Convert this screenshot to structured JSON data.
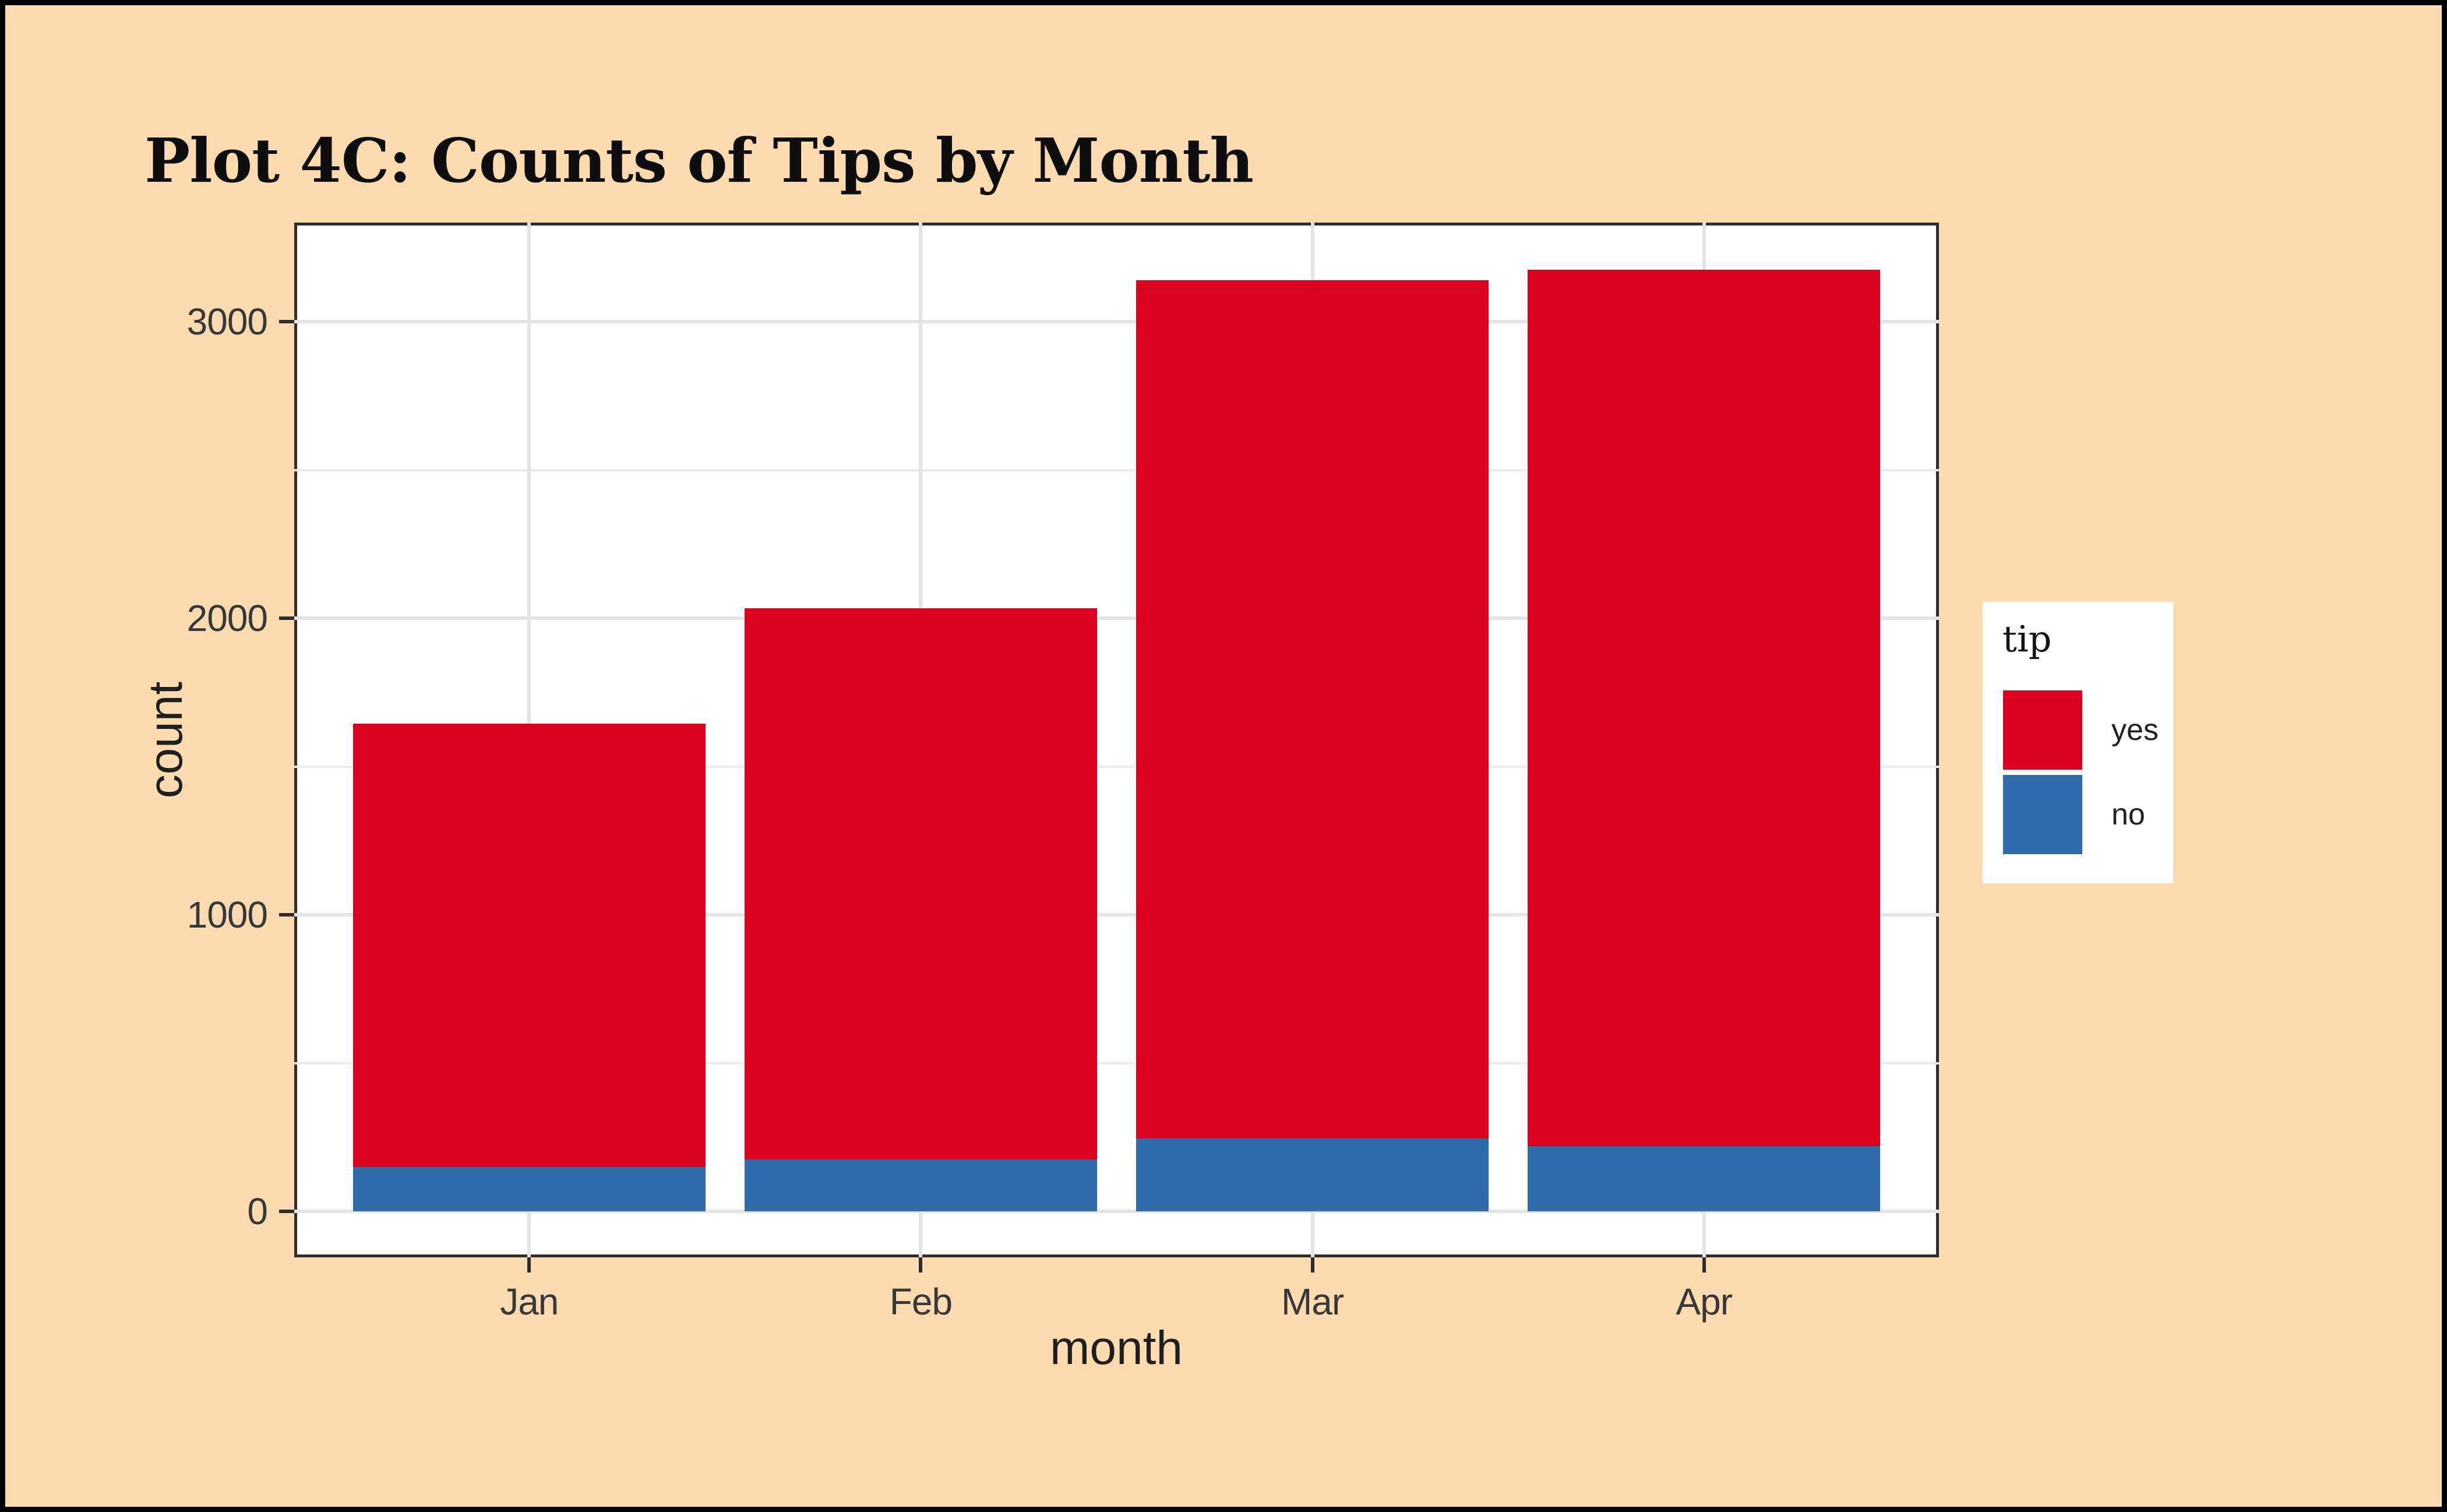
{
  "chart_data": {
    "type": "bar",
    "stacked": true,
    "title": "Plot 4C: Counts of Tips by Month",
    "xlabel": "month",
    "ylabel": "count",
    "categories": [
      "Jan",
      "Feb",
      "Mar",
      "Apr"
    ],
    "series": [
      {
        "name": "yes",
        "color": "#DA0120",
        "values": [
          1495,
          1860,
          2895,
          2955
        ]
      },
      {
        "name": "no",
        "color": "#2E6BA8",
        "values": [
          150,
          175,
          245,
          220
        ]
      }
    ],
    "stack_order_bottom_to_top": [
      "no",
      "yes"
    ],
    "totals": [
      1645,
      2035,
      3140,
      3175
    ],
    "y_ticks": [
      0,
      1000,
      2000,
      3000
    ],
    "y_tick_labels": [
      "0",
      "1000",
      "2000",
      "3000"
    ],
    "y_minor_ticks": [
      500,
      1500,
      2500
    ],
    "ylim": [
      -155,
      3335
    ],
    "bar_width_fraction": 0.9,
    "x_units": {
      "min": 0.4,
      "max": 4.6
    },
    "grid": true,
    "legend": {
      "title": "tip",
      "position": "right",
      "entries": [
        {
          "label": "yes",
          "color": "#DA0120"
        },
        {
          "label": "no",
          "color": "#2E6BA8"
        }
      ]
    },
    "colors": {
      "figure_background": "#FCDBB0",
      "frame_border": "#000000",
      "panel_background": "#FFFFFF",
      "panel_border": "#2E2E2E",
      "grid_major": "#E4E4E4",
      "grid_minor": "#ECECEC",
      "axis_text": "#383838",
      "axis_title_text": "#1F1F1F",
      "title_text": "#0E0E0E"
    }
  }
}
